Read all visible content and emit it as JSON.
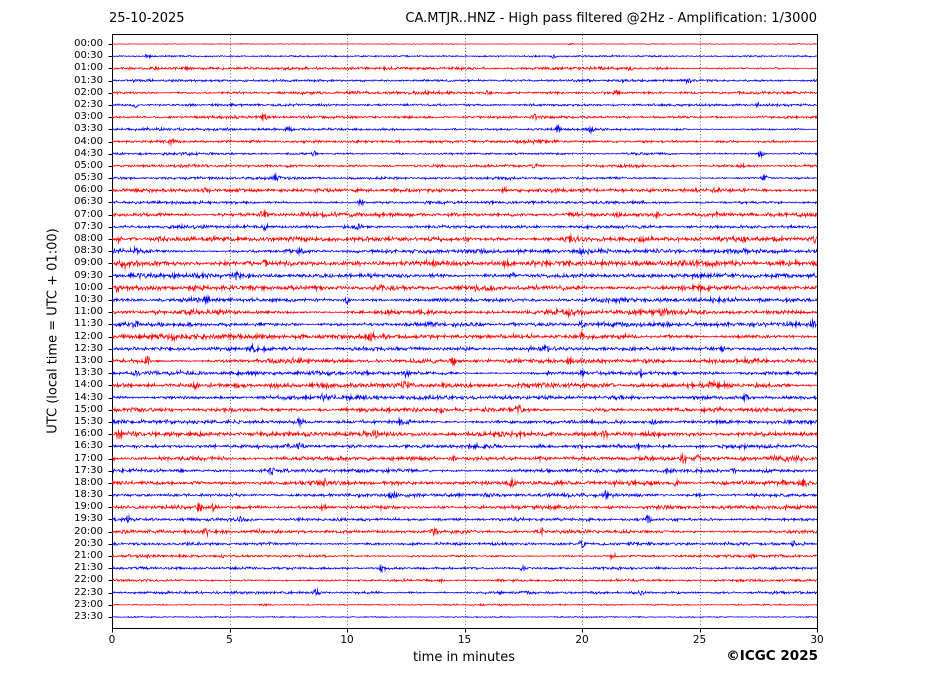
{
  "header": {
    "date": "25-10-2025",
    "title": "CA.MTJR..HNZ - High pass filtered @2Hz - Amplification: 1/3000"
  },
  "footer": {
    "copyright": "©ICGC 2025"
  },
  "chart_data": {
    "type": "line",
    "subtype": "helicorder-seismogram",
    "title": "CA.MTJR..HNZ - High pass filtered @2Hz - Amplification: 1/3000",
    "date": "25-10-2025",
    "xlabel": "time in minutes",
    "ylabel": "UTC (local time = UTC + 01:00)",
    "xlim": [
      0,
      30
    ],
    "x_ticks": [
      0,
      5,
      10,
      15,
      20,
      25,
      30
    ],
    "grid_minutes": [
      5,
      10,
      15,
      20,
      25
    ],
    "grid_style": "dotted-vertical",
    "minutes_per_row": 30,
    "row_order": "00:00 top to 23:30 bottom, alternating trace colors",
    "colors": {
      "trace_even": "#ff0000",
      "trace_odd": "#0000ff",
      "grid": "#444444",
      "frame": "#000000",
      "text": "#000000",
      "background": "#ffffff"
    },
    "rows_key": "t = UTC start time of 30-min row, c = trace color, n = background noise half-amplitude (px), s = visible event spikes as [minute, half-amplitude px]",
    "rows": [
      {
        "t": "00:00",
        "c": "#ff0000",
        "n": 0.3,
        "s": [
          [
            19.5,
            1.2
          ]
        ]
      },
      {
        "t": "00:30",
        "c": "#0000ff",
        "n": 0.55,
        "s": [
          [
            1.5,
            1.2
          ],
          [
            18.8,
            2.2
          ]
        ]
      },
      {
        "t": "01:00",
        "c": "#ff0000",
        "n": 0.9,
        "s": [
          [
            22,
            1.8
          ]
        ]
      },
      {
        "t": "01:30",
        "c": "#0000ff",
        "n": 0.8,
        "s": [
          [
            24.5,
            1.8
          ]
        ]
      },
      {
        "t": "02:00",
        "c": "#ff0000",
        "n": 0.9,
        "s": [
          [
            16,
            1.8
          ],
          [
            21.5,
            1.6
          ]
        ]
      },
      {
        "t": "02:30",
        "c": "#0000ff",
        "n": 0.8,
        "s": [
          [
            1,
            2.2
          ],
          [
            27.5,
            2.2
          ]
        ]
      },
      {
        "t": "03:00",
        "c": "#ff0000",
        "n": 0.85,
        "s": [
          [
            6.5,
            2.8
          ],
          [
            18,
            2.6
          ]
        ]
      },
      {
        "t": "03:30",
        "c": "#0000ff",
        "n": 0.8,
        "s": [
          [
            7.5,
            1.8
          ],
          [
            19,
            3.2
          ],
          [
            20.4,
            3.2
          ]
        ]
      },
      {
        "t": "04:00",
        "c": "#ff0000",
        "n": 0.85,
        "s": [
          [
            2.5,
            2.2
          ]
        ]
      },
      {
        "t": "04:30",
        "c": "#0000ff",
        "n": 0.8,
        "s": [
          [
            8.6,
            2.6
          ],
          [
            27.6,
            3.2
          ]
        ]
      },
      {
        "t": "05:00",
        "c": "#ff0000",
        "n": 1.0,
        "s": [
          [
            18,
            2.2
          ],
          [
            26.8,
            2.8
          ]
        ]
      },
      {
        "t": "05:30",
        "c": "#0000ff",
        "n": 0.9,
        "s": [
          [
            7,
            3.2
          ],
          [
            27.8,
            2.6
          ]
        ]
      },
      {
        "t": "06:00",
        "c": "#ff0000",
        "n": 1.1,
        "s": [
          [
            4,
            2.2
          ],
          [
            16.7,
            2.4
          ]
        ]
      },
      {
        "t": "06:30",
        "c": "#0000ff",
        "n": 1.0,
        "s": [
          [
            10.6,
            2.8
          ]
        ]
      },
      {
        "t": "07:00",
        "c": "#ff0000",
        "n": 1.2,
        "s": [
          [
            6.4,
            3.6
          ],
          [
            21.5,
            2.2
          ],
          [
            23.2,
            2.2
          ],
          [
            25.8,
            2.2
          ]
        ]
      },
      {
        "t": "07:30",
        "c": "#0000ff",
        "n": 1.0,
        "s": [
          [
            6.5,
            2.6
          ],
          [
            10.5,
            3.0
          ]
        ]
      },
      {
        "t": "08:00",
        "c": "#ff0000",
        "n": 1.6,
        "s": [
          [
            0.3,
            2.6
          ],
          [
            19.5,
            3.0
          ],
          [
            29.9,
            2.2
          ]
        ]
      },
      {
        "t": "08:30",
        "c": "#0000ff",
        "n": 1.5,
        "s": [
          [
            1,
            2.2
          ],
          [
            8,
            2.8
          ],
          [
            20,
            2.0
          ]
        ]
      },
      {
        "t": "09:00",
        "c": "#ff0000",
        "n": 1.8,
        "s": [
          [
            0.5,
            2.6
          ],
          [
            6.5,
            2.6
          ],
          [
            16.8,
            2.6
          ]
        ]
      },
      {
        "t": "09:30",
        "c": "#0000ff",
        "n": 1.5,
        "s": [
          [
            1.2,
            2.2
          ],
          [
            5.3,
            2.8
          ],
          [
            17,
            2.2
          ]
        ]
      },
      {
        "t": "10:00",
        "c": "#ff0000",
        "n": 1.6,
        "s": [
          [
            0.2,
            2.2
          ],
          [
            15.5,
            2.6
          ]
        ]
      },
      {
        "t": "10:30",
        "c": "#0000ff",
        "n": 1.3,
        "s": [
          [
            4,
            2.6
          ],
          [
            10,
            3.0
          ],
          [
            25.5,
            2.2
          ]
        ]
      },
      {
        "t": "11:00",
        "c": "#ff0000",
        "n": 1.4,
        "s": [
          [
            19.5,
            2.6
          ],
          [
            23.5,
            1.8
          ]
        ]
      },
      {
        "t": "11:30",
        "c": "#0000ff",
        "n": 1.3,
        "s": [
          [
            1,
            2.8
          ],
          [
            20,
            2.6
          ],
          [
            29.8,
            3.2
          ]
        ]
      },
      {
        "t": "12:00",
        "c": "#ff0000",
        "n": 1.4,
        "s": [
          [
            11,
            3.2
          ],
          [
            20,
            2.2
          ]
        ]
      },
      {
        "t": "12:30",
        "c": "#0000ff",
        "n": 1.3,
        "s": [
          [
            6,
            2.8
          ],
          [
            18.5,
            2.2
          ],
          [
            26,
            1.8
          ]
        ]
      },
      {
        "t": "13:00",
        "c": "#ff0000",
        "n": 1.5,
        "s": [
          [
            1.5,
            3.2
          ],
          [
            14.5,
            2.8
          ],
          [
            19.5,
            2.2
          ],
          [
            27,
            2.2
          ]
        ]
      },
      {
        "t": "13:30",
        "c": "#0000ff",
        "n": 1.4,
        "s": [
          [
            1,
            2.2
          ],
          [
            12.5,
            2.8
          ],
          [
            20,
            2.2
          ],
          [
            22.5,
            2.8
          ]
        ]
      },
      {
        "t": "14:00",
        "c": "#ff0000",
        "n": 1.5,
        "s": [
          [
            3.5,
            2.8
          ],
          [
            12.5,
            3.6
          ],
          [
            25.5,
            2.2
          ]
        ]
      },
      {
        "t": "14:30",
        "c": "#0000ff",
        "n": 1.3,
        "s": [
          [
            9,
            2.8
          ],
          [
            27,
            2.8
          ]
        ]
      },
      {
        "t": "15:00",
        "c": "#ff0000",
        "n": 1.4,
        "s": [
          [
            14,
            3.2
          ],
          [
            17.3,
            3.6
          ]
        ]
      },
      {
        "t": "15:30",
        "c": "#0000ff",
        "n": 1.3,
        "s": [
          [
            8,
            2.8
          ],
          [
            12.2,
            2.2
          ],
          [
            23,
            2.8
          ]
        ]
      },
      {
        "t": "16:00",
        "c": "#ff0000",
        "n": 1.5,
        "s": [
          [
            0.3,
            3.6
          ],
          [
            11.2,
            2.8
          ],
          [
            21,
            2.8
          ]
        ]
      },
      {
        "t": "16:30",
        "c": "#0000ff",
        "n": 1.3,
        "s": [
          [
            8,
            2.8
          ],
          [
            22.5,
            3.2
          ]
        ]
      },
      {
        "t": "17:00",
        "c": "#ff0000",
        "n": 1.4,
        "s": [
          [
            14.5,
            2.8
          ],
          [
            24.3,
            4.2
          ],
          [
            24.9,
            3.2
          ]
        ]
      },
      {
        "t": "17:30",
        "c": "#0000ff",
        "n": 1.2,
        "s": [
          [
            6.8,
            3.2
          ],
          [
            26.5,
            2.2
          ]
        ]
      },
      {
        "t": "18:00",
        "c": "#ff0000",
        "n": 1.4,
        "s": [
          [
            9,
            2.8
          ],
          [
            17,
            2.8
          ],
          [
            24,
            3.2
          ],
          [
            29.4,
            3.2
          ]
        ]
      },
      {
        "t": "18:30",
        "c": "#0000ff",
        "n": 1.2,
        "s": [
          [
            12,
            2.8
          ],
          [
            21,
            3.2
          ]
        ]
      },
      {
        "t": "19:00",
        "c": "#ff0000",
        "n": 1.2,
        "s": [
          [
            3.7,
            3.2
          ],
          [
            4.3,
            2.8
          ],
          [
            9,
            2.2
          ]
        ]
      },
      {
        "t": "19:30",
        "c": "#0000ff",
        "n": 1.1,
        "s": [
          [
            0.7,
            2.8
          ],
          [
            5.5,
            2.2
          ],
          [
            22.8,
            3.8
          ]
        ]
      },
      {
        "t": "20:00",
        "c": "#ff0000",
        "n": 1.1,
        "s": [
          [
            4,
            3.2
          ],
          [
            13.7,
            4.2
          ],
          [
            18.3,
            2.8
          ]
        ]
      },
      {
        "t": "20:30",
        "c": "#0000ff",
        "n": 1.0,
        "s": [
          [
            20,
            2.8
          ],
          [
            29,
            3.2
          ]
        ]
      },
      {
        "t": "21:00",
        "c": "#ff0000",
        "n": 0.9,
        "s": [
          [
            21.3,
            3.2
          ]
        ]
      },
      {
        "t": "21:30",
        "c": "#0000ff",
        "n": 0.9,
        "s": [
          [
            11.5,
            2.8
          ],
          [
            17.5,
            2.2
          ]
        ]
      },
      {
        "t": "22:00",
        "c": "#ff0000",
        "n": 0.8,
        "s": [
          [
            14,
            1.8
          ]
        ]
      },
      {
        "t": "22:30",
        "c": "#0000ff",
        "n": 0.8,
        "s": [
          [
            8.7,
            3.2
          ],
          [
            22.5,
            2.2
          ]
        ]
      },
      {
        "t": "23:00",
        "c": "#ff0000",
        "n": 0.5,
        "s": [
          [
            6.5,
            1.4
          ]
        ]
      },
      {
        "t": "23:30",
        "c": "#0000ff",
        "n": 0.4,
        "s": []
      }
    ]
  }
}
